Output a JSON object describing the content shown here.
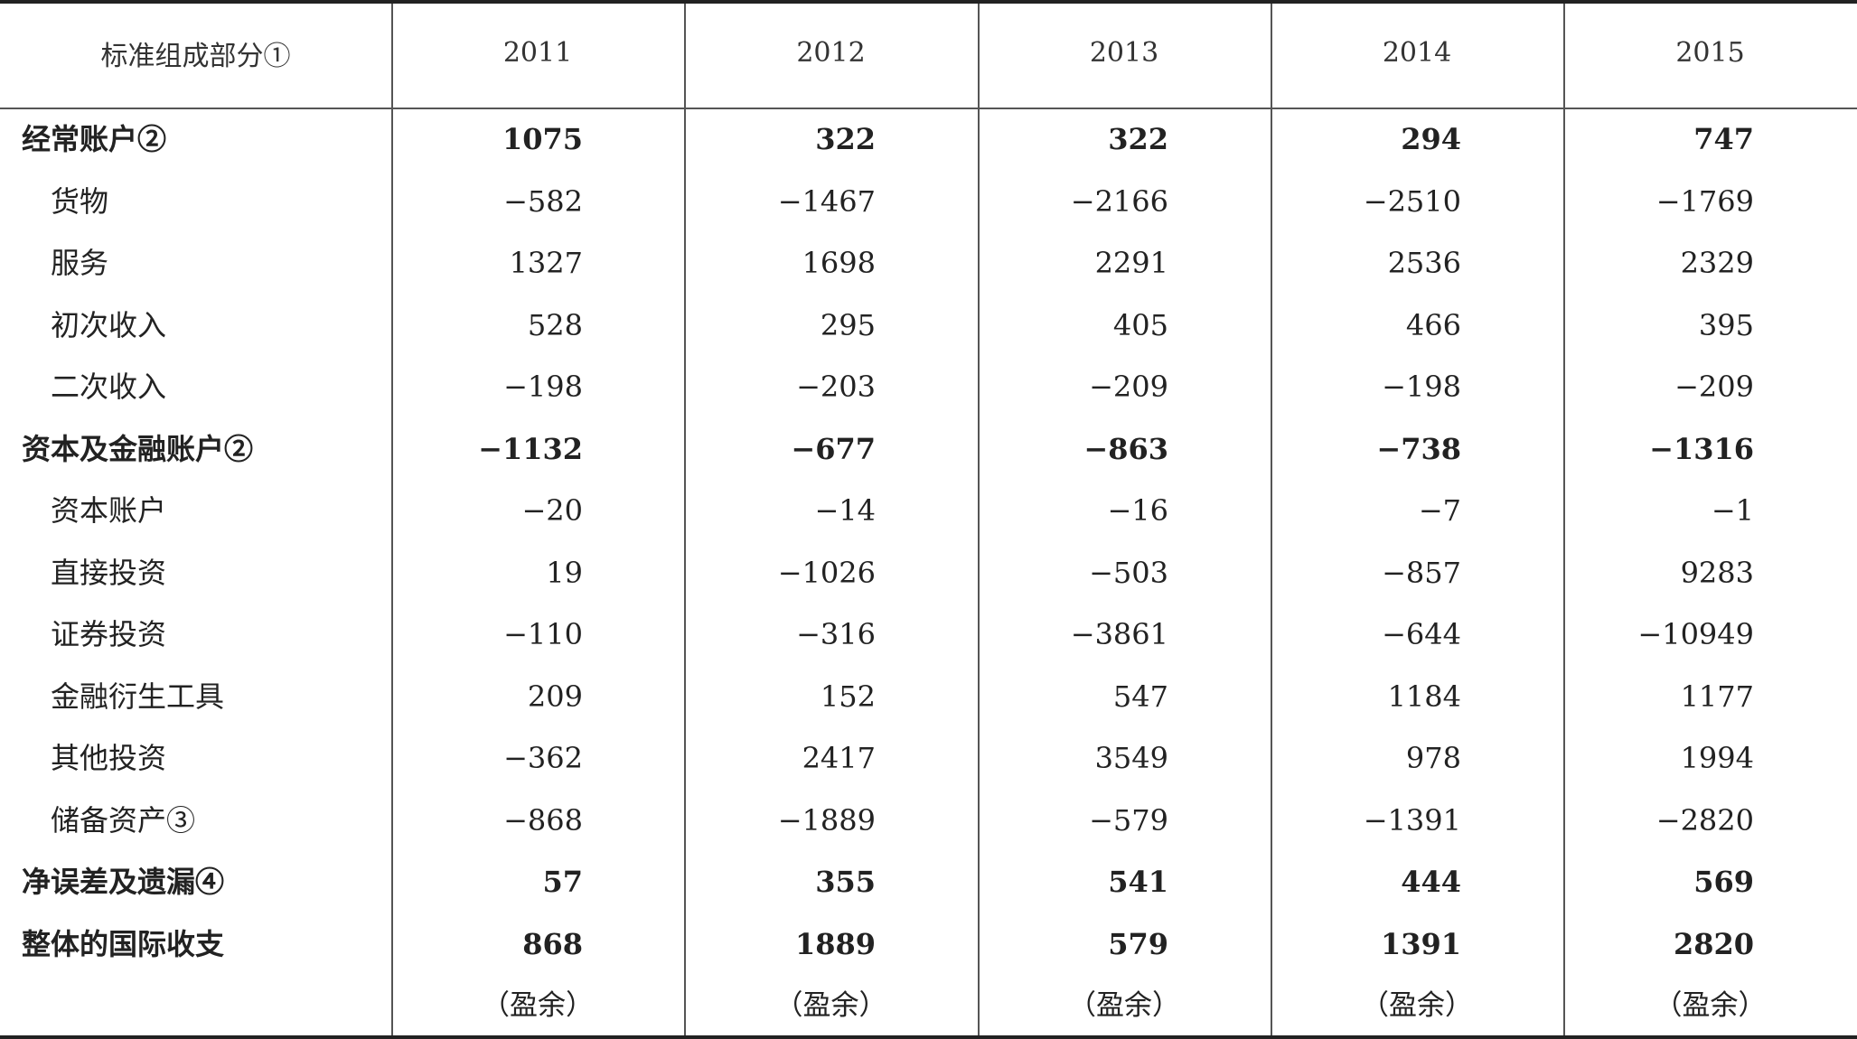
{
  "table": {
    "header": {
      "label": "标准组成部分①",
      "years": [
        "2011",
        "2012",
        "2013",
        "2014",
        "2015"
      ]
    },
    "rows": [
      {
        "label": "经常账户②",
        "major": true,
        "values": [
          "1075",
          "322",
          "322",
          "294",
          "747"
        ]
      },
      {
        "label": "货物",
        "major": false,
        "values": [
          "−582",
          "−1467",
          "−2166",
          "−2510",
          "−1769"
        ]
      },
      {
        "label": "服务",
        "major": false,
        "values": [
          "1327",
          "1698",
          "2291",
          "2536",
          "2329"
        ]
      },
      {
        "label": "初次收入",
        "major": false,
        "values": [
          "528",
          "295",
          "405",
          "466",
          "395"
        ]
      },
      {
        "label": "二次收入",
        "major": false,
        "values": [
          "−198",
          "−203",
          "−209",
          "−198",
          "−209"
        ]
      },
      {
        "label": "资本及金融账户②",
        "major": true,
        "values": [
          "−1132",
          "−677",
          "−863",
          "−738",
          "−1316"
        ]
      },
      {
        "label": "资本账户",
        "major": false,
        "values": [
          "−20",
          "−14",
          "−16",
          "−7",
          "−1"
        ]
      },
      {
        "label": "直接投资",
        "major": false,
        "values": [
          "19",
          "−1026",
          "−503",
          "−857",
          "9283"
        ]
      },
      {
        "label": "证券投资",
        "major": false,
        "values": [
          "−110",
          "−316",
          "−3861",
          "−644",
          "−10949"
        ]
      },
      {
        "label": "金融衍生工具",
        "major": false,
        "values": [
          "209",
          "152",
          "547",
          "1184",
          "1177"
        ]
      },
      {
        "label": "其他投资",
        "major": false,
        "values": [
          "−362",
          "2417",
          "3549",
          "978",
          "1994"
        ]
      },
      {
        "label": "储备资产③",
        "major": false,
        "values": [
          "−868",
          "−1889",
          "−579",
          "−1391",
          "−2820"
        ]
      },
      {
        "label": "净误差及遗漏④",
        "major": true,
        "values": [
          "57",
          "355",
          "541",
          "444",
          "569"
        ]
      },
      {
        "label": "整体的国际收支",
        "major": true,
        "values": [
          "868",
          "1889",
          "579",
          "1391",
          "2820"
        ]
      }
    ],
    "notes": [
      "（盈余）",
      "（盈余）",
      "（盈余）",
      "（盈余）",
      "（盈余）"
    ]
  }
}
